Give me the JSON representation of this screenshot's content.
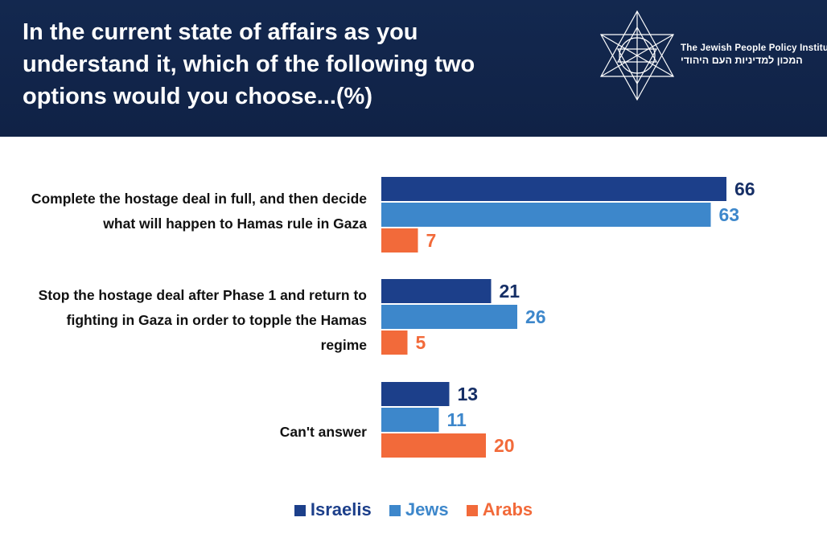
{
  "header": {
    "title": "In the current state of affairs as you understand it, which of the following two options would you choose...(%)",
    "org_name_en": "The Jewish People Policy Institute",
    "org_name_he": "המכון למדיניות העם היהודי"
  },
  "colors": {
    "header_bg": "#13284f",
    "Israelis": "#1c3f8a",
    "Jews": "#3d87cb",
    "Arabs": "#f26a3a"
  },
  "chart_data": {
    "type": "bar",
    "orientation": "horizontal",
    "title": "In the current state of affairs as you understand it, which of the following two options would you choose...(%)",
    "categories": [
      "Complete the hostage deal in full, and then decide what will happen to Hamas rule in Gaza",
      "Stop the hostage deal after Phase 1 and return to fighting in Gaza in order to topple the Hamas regime",
      "Can't answer"
    ],
    "series": [
      {
        "name": "Israelis",
        "values": [
          66,
          21,
          13
        ]
      },
      {
        "name": "Jews",
        "values": [
          63,
          26,
          11
        ]
      },
      {
        "name": "Arabs",
        "values": [
          7,
          5,
          20
        ]
      }
    ],
    "legend_position": "bottom",
    "grid": false,
    "data_labels": true
  }
}
